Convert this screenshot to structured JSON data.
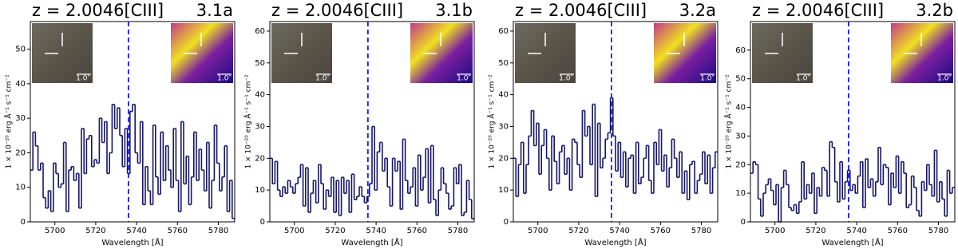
{
  "chart_data": [
    {
      "type": "step",
      "title": "z = 2.0046[CIII]",
      "label": "3.1a",
      "xlabel": "Wavelength [Å]",
      "ylabel": "1 × 10⁻²⁰ erg Å⁻¹ s⁻¹ cm⁻²",
      "image_scale_label": "1.0″",
      "xlim": [
        5688,
        5788
      ],
      "xticks": [
        5700,
        5720,
        5740,
        5760,
        5780
      ],
      "ylim": [
        0,
        58
      ],
      "yticks": [
        0,
        10,
        20,
        30,
        40,
        50
      ],
      "reference_line": {
        "x": 5736,
        "color": "#0000ff",
        "style": "dashed"
      },
      "x": [
        5688,
        5689.25,
        5690.5,
        5691.75,
        5693,
        5694.25,
        5695.5,
        5696.75,
        5698,
        5699.25,
        5700.5,
        5701.75,
        5703,
        5704.25,
        5705.5,
        5706.75,
        5708,
        5709.25,
        5710.5,
        5711.75,
        5713,
        5714.25,
        5715.5,
        5716.75,
        5718,
        5719.25,
        5720.5,
        5721.75,
        5723,
        5724.25,
        5725.5,
        5726.75,
        5728,
        5729.25,
        5730.5,
        5731.75,
        5733,
        5734.25,
        5735.5,
        5736.75,
        5738,
        5739.25,
        5740.5,
        5741.75,
        5743,
        5744.25,
        5745.5,
        5746.75,
        5748,
        5749.25,
        5750.5,
        5751.75,
        5753,
        5754.25,
        5755.5,
        5756.75,
        5758,
        5759.25,
        5760.5,
        5761.75,
        5763,
        5764.25,
        5765.5,
        5766.75,
        5768,
        5769.25,
        5770.5,
        5771.75,
        5773,
        5774.25,
        5775.5,
        5776.75,
        5778,
        5779.25,
        5780.5,
        5781.75,
        5783,
        5784.25,
        5785.5,
        5786.75
      ],
      "color": "#16166b",
      "values": [
        15,
        26,
        22,
        15,
        17,
        7,
        4,
        9,
        3,
        17,
        14,
        10,
        11,
        23,
        3,
        15,
        16,
        12,
        14,
        4,
        27,
        14,
        24,
        25,
        16,
        18,
        17,
        30,
        23,
        29,
        14,
        20,
        34,
        27,
        33,
        25,
        16,
        27,
        14,
        32,
        34,
        20,
        17,
        29,
        5,
        16,
        9,
        5,
        28,
        13,
        8,
        26,
        12,
        22,
        15,
        10,
        27,
        12,
        3,
        29,
        11,
        19,
        5,
        13,
        26,
        12,
        21,
        15,
        9,
        23,
        4,
        12,
        28,
        17,
        9,
        13,
        22,
        3,
        12,
        1
      ]
    },
    {
      "type": "step",
      "title": "z = 2.0046[CIII]",
      "label": "3.1b",
      "xlabel": "Wavelength [Å]",
      "ylabel": "1 × 10⁻²⁰ erg Å⁻¹ s⁻¹ cm⁻²",
      "image_scale_label": "1.0″",
      "xlim": [
        5688,
        5788
      ],
      "xticks": [
        5700,
        5720,
        5740,
        5760,
        5780
      ],
      "ylim": [
        0,
        63
      ],
      "yticks": [
        0,
        10,
        20,
        30,
        40,
        50,
        60
      ],
      "reference_line": {
        "x": 5736,
        "color": "#0000ff",
        "style": "dashed"
      },
      "x": [
        5688,
        5689.25,
        5690.5,
        5691.75,
        5693,
        5694.25,
        5695.5,
        5696.75,
        5698,
        5699.25,
        5700.5,
        5701.75,
        5703,
        5704.25,
        5705.5,
        5706.75,
        5708,
        5709.25,
        5710.5,
        5711.75,
        5713,
        5714.25,
        5715.5,
        5716.75,
        5718,
        5719.25,
        5720.5,
        5721.75,
        5723,
        5724.25,
        5725.5,
        5726.75,
        5728,
        5729.25,
        5730.5,
        5731.75,
        5733,
        5734.25,
        5735.5,
        5736.75,
        5738,
        5739.25,
        5740.5,
        5741.75,
        5743,
        5744.25,
        5745.5,
        5746.75,
        5748,
        5749.25,
        5750.5,
        5751.75,
        5753,
        5754.25,
        5755.5,
        5756.75,
        5758,
        5759.25,
        5760.5,
        5761.75,
        5763,
        5764.25,
        5765.5,
        5766.75,
        5768,
        5769.25,
        5770.5,
        5771.75,
        5773,
        5774.25,
        5775.5,
        5776.75,
        5778,
        5779.25,
        5780.5,
        5781.75,
        5783,
        5784.25,
        5785.5,
        5786.75
      ],
      "color": "#16166b",
      "values": [
        20,
        12,
        19,
        10,
        8,
        11,
        9,
        13,
        11,
        9,
        12,
        14,
        18,
        5,
        17,
        3,
        9,
        13,
        6,
        18,
        12,
        4,
        10,
        8,
        14,
        3,
        13,
        2,
        14,
        9,
        13,
        3,
        15,
        7,
        8,
        11,
        8,
        6,
        8,
        12,
        30,
        10,
        22,
        25,
        16,
        20,
        11,
        5,
        20,
        16,
        19,
        4,
        26,
        13,
        9,
        11,
        17,
        5,
        21,
        10,
        14,
        23,
        6,
        24,
        7,
        2,
        10,
        17,
        12,
        9,
        4,
        5,
        17,
        12,
        18,
        2,
        3,
        13,
        7,
        1
      ]
    },
    {
      "type": "step",
      "title": "z = 2.0046[CIII]",
      "label": "3.2a",
      "xlabel": "Wavelength [Å]",
      "ylabel": "1 × 10⁻²⁰ erg Å⁻¹ s⁻¹ cm⁻²",
      "image_scale_label": "1.0″",
      "xlim": [
        5688,
        5788
      ],
      "xticks": [
        5700,
        5720,
        5740,
        5760,
        5780
      ],
      "ylim": [
        0,
        63
      ],
      "yticks": [
        0,
        10,
        20,
        30,
        40,
        50,
        60
      ],
      "reference_line": {
        "x": 5736,
        "color": "#0000ff",
        "style": "dashed"
      },
      "x": [
        5688,
        5689.25,
        5690.5,
        5691.75,
        5693,
        5694.25,
        5695.5,
        5696.75,
        5698,
        5699.25,
        5700.5,
        5701.75,
        5703,
        5704.25,
        5705.5,
        5706.75,
        5708,
        5709.25,
        5710.5,
        5711.75,
        5713,
        5714.25,
        5715.5,
        5716.75,
        5718,
        5719.25,
        5720.5,
        5721.75,
        5723,
        5724.25,
        5725.5,
        5726.75,
        5728,
        5729.25,
        5730.5,
        5731.75,
        5733,
        5734.25,
        5735.5,
        5736.75,
        5738,
        5739.25,
        5740.5,
        5741.75,
        5743,
        5744.25,
        5745.5,
        5746.75,
        5748,
        5749.25,
        5750.5,
        5751.75,
        5753,
        5754.25,
        5755.5,
        5756.75,
        5758,
        5759.25,
        5760.5,
        5761.75,
        5763,
        5764.25,
        5765.5,
        5766.75,
        5768,
        5769.25,
        5770.5,
        5771.75,
        5773,
        5774.25,
        5775.5,
        5776.75,
        5778,
        5779.25,
        5780.5,
        5781.75,
        5783,
        5784.25,
        5785.5,
        5786.75
      ],
      "color": "#16166b",
      "values": [
        20,
        8,
        18,
        25,
        9,
        18,
        27,
        35,
        24,
        31,
        15,
        24,
        29,
        20,
        10,
        27,
        19,
        12,
        22,
        24,
        15,
        20,
        10,
        26,
        25,
        18,
        14,
        35,
        27,
        30,
        18,
        37,
        8,
        31,
        17,
        20,
        26,
        28,
        39,
        27,
        16,
        25,
        14,
        22,
        11,
        20,
        21,
        9,
        25,
        12,
        14,
        20,
        24,
        13,
        9,
        25,
        18,
        29,
        16,
        21,
        11,
        17,
        26,
        20,
        14,
        22,
        9,
        16,
        7,
        18,
        19,
        9,
        13,
        15,
        22,
        12,
        21,
        9,
        17,
        22
      ]
    },
    {
      "type": "step",
      "title": "z = 2.0046[CIII]",
      "label": "3.2b",
      "xlabel": "Wavelength [Å]",
      "ylabel": "1 × 10⁻²⁰ erg Å⁻¹ s⁻¹ cm⁻²",
      "image_scale_label": "1.0″",
      "xlim": [
        5688,
        5788
      ],
      "xticks": [
        5700,
        5720,
        5740,
        5760,
        5780
      ],
      "ylim": [
        0,
        70
      ],
      "yticks": [
        0,
        10,
        20,
        30,
        40,
        50,
        60
      ],
      "reference_line": {
        "x": 5736,
        "color": "#0000ff",
        "style": "dashed"
      },
      "x": [
        5688,
        5689.25,
        5690.5,
        5691.75,
        5693,
        5694.25,
        5695.5,
        5696.75,
        5698,
        5699.25,
        5700.5,
        5701.75,
        5703,
        5704.25,
        5705.5,
        5706.75,
        5708,
        5709.25,
        5710.5,
        5711.75,
        5713,
        5714.25,
        5715.5,
        5716.75,
        5718,
        5719.25,
        5720.5,
        5721.75,
        5723,
        5724.25,
        5725.5,
        5726.75,
        5728,
        5729.25,
        5730.5,
        5731.75,
        5733,
        5734.25,
        5735.5,
        5736.75,
        5738,
        5739.25,
        5740.5,
        5741.75,
        5743,
        5744.25,
        5745.5,
        5746.75,
        5748,
        5749.25,
        5750.5,
        5751.75,
        5753,
        5754.25,
        5755.5,
        5756.75,
        5758,
        5759.25,
        5760.5,
        5761.75,
        5763,
        5764.25,
        5765.5,
        5766.75,
        5768,
        5769.25,
        5770.5,
        5771.75,
        5773,
        5774.25,
        5775.5,
        5776.75,
        5778,
        5779.25,
        5780.5,
        5781.75,
        5783,
        5784.25,
        5785.5,
        5786.75
      ],
      "color": "#16166b",
      "values": [
        17,
        21,
        20,
        8,
        2,
        10,
        13,
        15,
        11,
        6,
        13,
        0,
        12,
        18,
        13,
        5,
        4,
        6,
        3,
        7,
        21,
        8,
        13,
        10,
        17,
        3,
        12,
        9,
        19,
        18,
        9,
        28,
        26,
        14,
        7,
        21,
        8,
        14,
        18,
        11,
        13,
        10,
        16,
        21,
        5,
        22,
        12,
        15,
        9,
        14,
        26,
        13,
        20,
        19,
        6,
        17,
        12,
        23,
        10,
        21,
        17,
        5,
        6,
        16,
        12,
        4,
        2,
        14,
        11,
        20,
        13,
        9,
        25,
        7,
        14,
        8,
        2,
        18,
        10,
        12
      ]
    }
  ]
}
